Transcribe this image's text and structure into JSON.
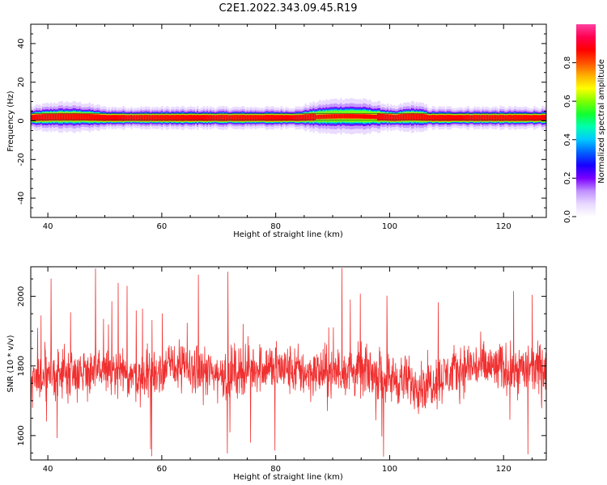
{
  "title": "C2E1.2022.343.09.45.R19",
  "colors": {
    "snr_line": "#f03030",
    "axis": "#000000",
    "center_band": "#ff2020",
    "colormap": [
      "#ffffff",
      "#e8d8ff",
      "#c090ff",
      "#7a00ff",
      "#1800ff",
      "#0060ff",
      "#00c8ff",
      "#00ffb0",
      "#10ff30",
      "#80ff00",
      "#ffff00",
      "#ffb000",
      "#ff5000",
      "#ff0000",
      "#ff0050",
      "#ff40a0"
    ]
  },
  "chart_data": [
    {
      "type": "heatmap",
      "name": "spectrogram",
      "xlabel": "Height of straight line (km)",
      "ylabel": "Frequency (Hz)",
      "xlim": [
        37,
        127.5
      ],
      "ylim": [
        -50,
        50
      ],
      "xticks": [
        40,
        60,
        80,
        100,
        120
      ],
      "yticks": [
        -40,
        -20,
        0,
        20,
        40
      ],
      "ytick_labels": [
        "-40",
        "-20",
        "0",
        "20",
        "40"
      ],
      "grid": false,
      "band": {
        "center_hz": 1.5,
        "core_halfwidth_hz": 1.0,
        "outer_halfwidth_hz": 3.5,
        "spread_regions": [
          {
            "x_from": 84,
            "x_to": 101,
            "extra_halfwidth_hz": 2.5
          },
          {
            "x_from": 37,
            "x_to": 50,
            "extra_halfwidth_hz": 1.5
          },
          {
            "x_from": 101,
            "x_to": 107,
            "extra_halfwidth_hz": 1.5
          }
        ]
      },
      "colorbar": {
        "label": "Normalized spectral amplitude",
        "range": [
          0,
          1
        ],
        "ticks": [
          0.0,
          0.2,
          0.4,
          0.6,
          0.8
        ],
        "tick_labels": [
          "0.0",
          "0.2",
          "0.4",
          "0.6",
          "0.8"
        ]
      }
    },
    {
      "type": "line",
      "name": "snr",
      "xlabel": "Height of straight line (km)",
      "ylabel": "SNR (10 * v/v)",
      "xlim": [
        37,
        127.5
      ],
      "ylim": [
        1530,
        2085
      ],
      "xticks": [
        40,
        60,
        80,
        100,
        120
      ],
      "yticks": [
        1600,
        1800,
        2000
      ],
      "grid": false,
      "series": [
        {
          "x_start": 37,
          "x_end": 127.5,
          "points": 1800,
          "mean": 1790,
          "mean_trend": [
            [
              37,
              1760
            ],
            [
              40,
              1775
            ],
            [
              50,
              1790
            ],
            [
              56,
              1770
            ],
            [
              62,
              1800
            ],
            [
              70,
              1775
            ],
            [
              78,
              1800
            ],
            [
              86,
              1780
            ],
            [
              96,
              1785
            ],
            [
              100,
              1765
            ],
            [
              106,
              1745
            ],
            [
              114,
              1800
            ],
            [
              122,
              1790
            ],
            [
              127.5,
              1790
            ]
          ],
          "noise_range": 55,
          "spike_max": 2085,
          "spike_min": 1530
        }
      ]
    }
  ]
}
